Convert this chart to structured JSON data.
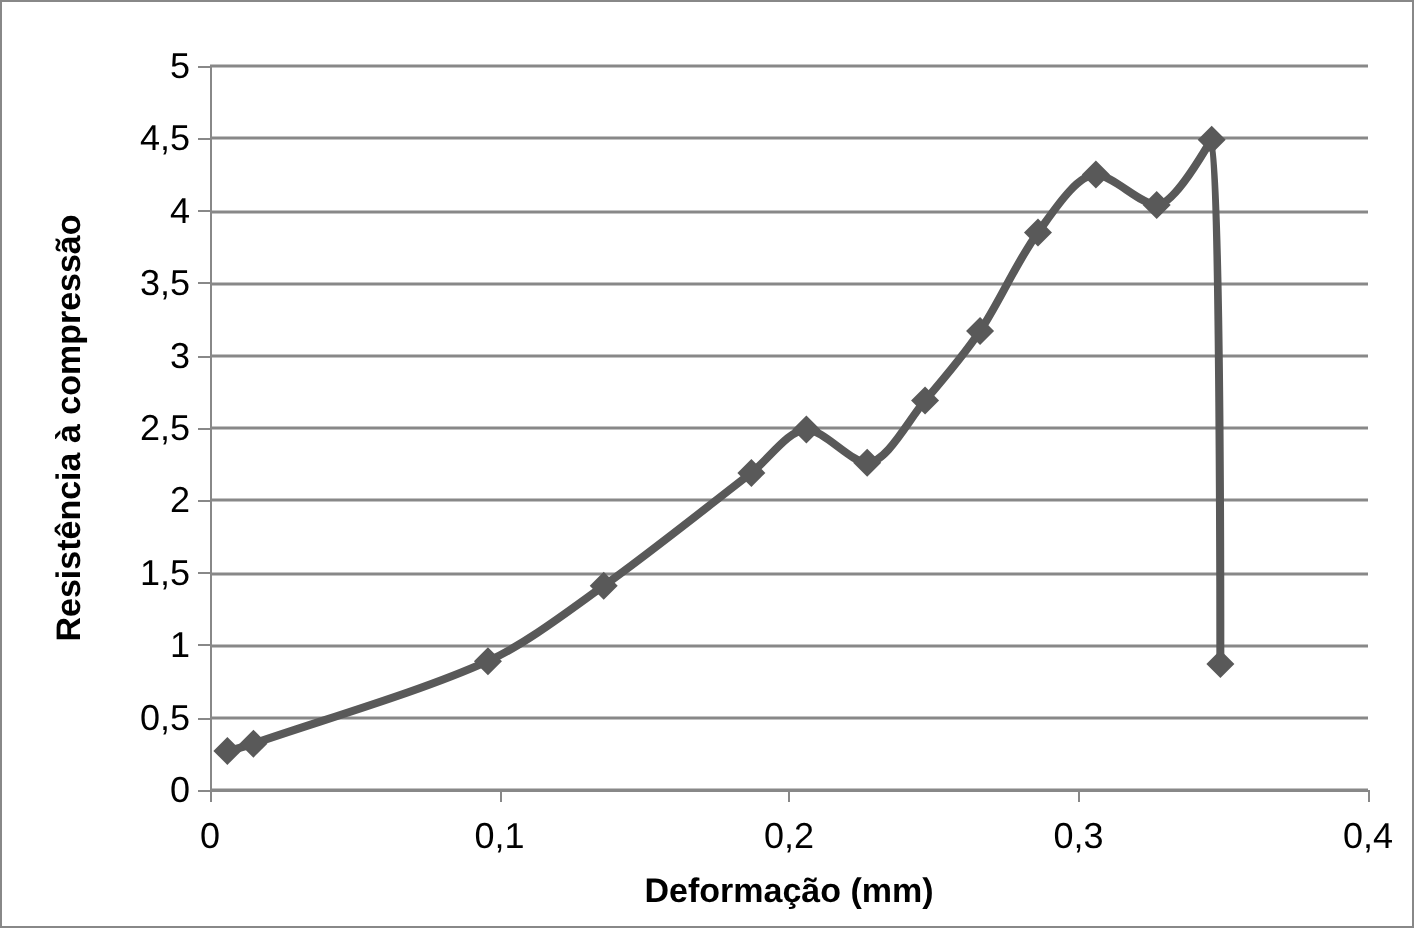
{
  "chart_data": {
    "type": "line",
    "xlabel": "Deformação (mm)",
    "ylabel": "Resistência à compressão",
    "x": [
      0.006,
      0.015,
      0.096,
      0.136,
      0.187,
      0.206,
      0.227,
      0.247,
      0.266,
      0.286,
      0.306,
      0.327,
      0.346,
      0.349
    ],
    "series": [
      {
        "color": "#595959",
        "values": [
          0.27,
          0.32,
          0.89,
          1.41,
          2.19,
          2.49,
          2.26,
          2.69,
          3.17,
          3.85,
          4.25,
          4.04,
          4.49,
          0.87
        ]
      }
    ],
    "xlim": [
      0,
      0.4
    ],
    "xticks": [
      {
        "value": 0,
        "label": "0"
      },
      {
        "value": 0.1,
        "label": "0,1"
      },
      {
        "value": 0.2,
        "label": "0,2"
      },
      {
        "value": 0.3,
        "label": "0,3"
      },
      {
        "value": 0.4,
        "label": "0,4"
      }
    ],
    "ylim": [
      0,
      5
    ],
    "yticks": [
      {
        "value": 0,
        "label": "0"
      },
      {
        "value": 0.5,
        "label": "0,5"
      },
      {
        "value": 1,
        "label": "1"
      },
      {
        "value": 1.5,
        "label": "1,5"
      },
      {
        "value": 2,
        "label": "2"
      },
      {
        "value": 2.5,
        "label": "2,5"
      },
      {
        "value": 3,
        "label": "3"
      },
      {
        "value": 3.5,
        "label": "3,5"
      },
      {
        "value": 4,
        "label": "4"
      },
      {
        "value": 4.5,
        "label": "4,5"
      },
      {
        "value": 5,
        "label": "5"
      }
    ],
    "grid": "y",
    "marker": "diamond",
    "line_style": "solid",
    "legend": false
  }
}
